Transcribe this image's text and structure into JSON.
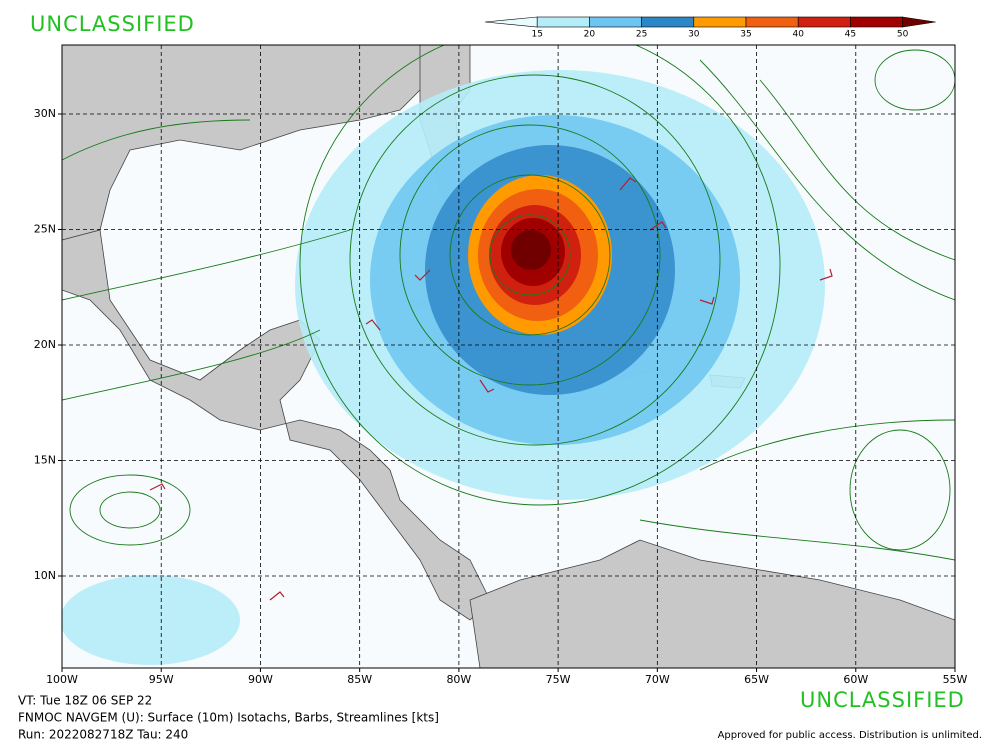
{
  "header": {
    "classification": "UNCLASSIFIED"
  },
  "colorbar": {
    "ticks": [
      15,
      20,
      25,
      30,
      35,
      40,
      45,
      50
    ],
    "colors": [
      "#e8fbff",
      "#b4ecf8",
      "#6cc4f0",
      "#2c86c8",
      "#ff9a00",
      "#f06010",
      "#d02010",
      "#a00000",
      "#700000"
    ]
  },
  "map": {
    "lon_labels": [
      "100W",
      "95W",
      "90W",
      "85W",
      "80W",
      "75W",
      "70W",
      "65W",
      "60W",
      "55W"
    ],
    "lat_labels": [
      "30N",
      "25N",
      "20N",
      "15N",
      "10N"
    ]
  },
  "footer": {
    "valid_time": "VT: Tue 18Z 06 SEP 22",
    "product": "FNMOC NAVGEM (U): Surface (10m) Isotachs, Barbs, Streamlines [kts]",
    "run": "Run: 2022082718Z Tau: 240",
    "classification": "UNCLASSIFIED",
    "release": "Approved for public access. Distribution is unlimited."
  }
}
